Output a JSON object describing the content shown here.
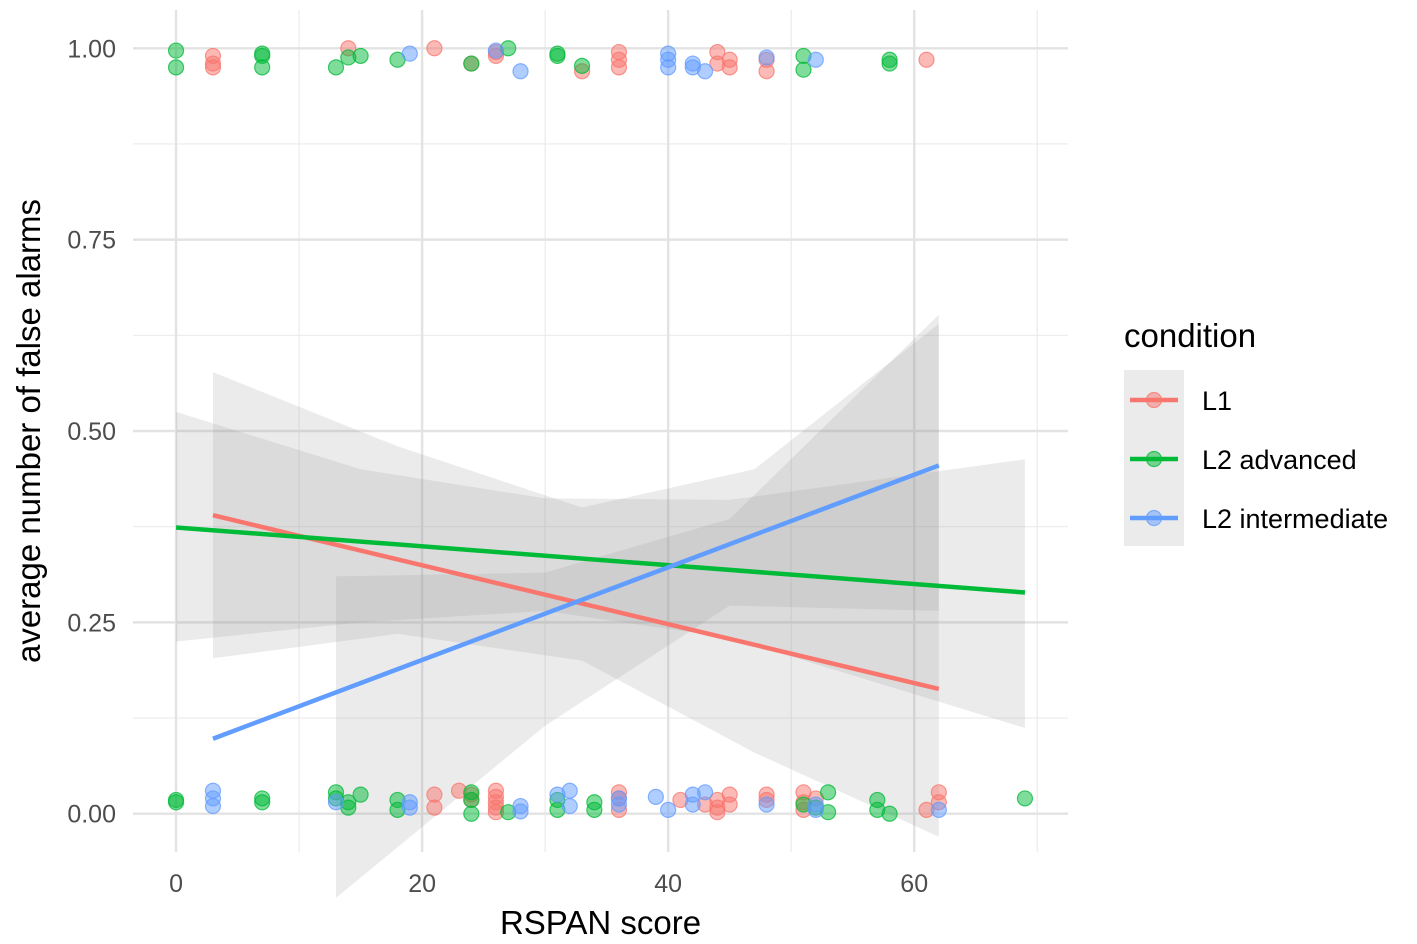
{
  "chart_data": {
    "type": "scatter",
    "xlabel": "RSPAN score",
    "ylabel": "average number of false alarms",
    "xlim": [
      -3.5,
      72.5
    ],
    "ylim": [
      -0.05,
      1.05
    ],
    "x_ticks": [
      0,
      20,
      40,
      60
    ],
    "x_tick_labels": [
      "0",
      "20",
      "40",
      "60"
    ],
    "x_minor_ticks": [
      10,
      30,
      50,
      70
    ],
    "y_ticks": [
      0,
      0.25,
      0.5,
      0.75,
      1.0
    ],
    "y_tick_labels": [
      "0.00",
      "0.25",
      "0.50",
      "0.75",
      "1.00"
    ],
    "y_minor_ticks": [
      0.125,
      0.375,
      0.625,
      0.875
    ],
    "legend": {
      "title": "condition",
      "position": "right",
      "entries": [
        "L1",
        "L2 advanced",
        "L2 intermediate"
      ]
    },
    "series": [
      {
        "name": "L1",
        "color": "#F8766D",
        "points": [
          [
            3,
            0.99
          ],
          [
            3,
            0.975
          ],
          [
            3,
            0.98
          ],
          [
            14,
            1.0
          ],
          [
            21,
            1.0
          ],
          [
            24,
            0.98
          ],
          [
            26,
            0.99
          ],
          [
            26,
            0.995
          ],
          [
            33,
            0.97
          ],
          [
            36,
            0.995
          ],
          [
            36,
            0.985
          ],
          [
            36,
            0.975
          ],
          [
            44,
            0.995
          ],
          [
            44,
            0.98
          ],
          [
            45,
            0.985
          ],
          [
            45,
            0.975
          ],
          [
            48,
            0.97
          ],
          [
            48,
            0.985
          ],
          [
            61,
            0.985
          ],
          [
            21,
            0.025
          ],
          [
            21,
            0.008
          ],
          [
            23,
            0.03
          ],
          [
            24,
            0.025
          ],
          [
            24,
            0.018
          ],
          [
            26,
            0.03
          ],
          [
            26,
            0.022
          ],
          [
            26,
            0.015
          ],
          [
            26,
            0.008
          ],
          [
            26,
            0.002
          ],
          [
            36,
            0.02
          ],
          [
            36,
            0.005
          ],
          [
            36,
            0.028
          ],
          [
            41,
            0.018
          ],
          [
            43,
            0.012
          ],
          [
            44,
            0.008
          ],
          [
            44,
            0.002
          ],
          [
            44,
            0.018
          ],
          [
            45,
            0.025
          ],
          [
            45,
            0.012
          ],
          [
            48,
            0.025
          ],
          [
            48,
            0.018
          ],
          [
            51,
            0.028
          ],
          [
            51,
            0.015
          ],
          [
            51,
            0.005
          ],
          [
            52,
            0.02
          ],
          [
            61,
            0.005
          ],
          [
            62,
            0.028
          ],
          [
            62,
            0.015
          ]
        ],
        "fit": {
          "x": [
            3,
            62
          ],
          "y": [
            0.39,
            0.163
          ]
        },
        "ci_upper": [
          [
            3,
            0.577
          ],
          [
            18,
            0.48
          ],
          [
            33,
            0.4
          ],
          [
            47,
            0.45
          ],
          [
            62,
            0.64
          ]
        ],
        "ci_lower": [
          [
            3,
            0.203
          ],
          [
            18,
            0.235
          ],
          [
            33,
            0.2
          ],
          [
            47,
            0.08
          ],
          [
            62,
            -0.03
          ]
        ]
      },
      {
        "name": "L2 advanced",
        "color": "#00BA38",
        "points": [
          [
            0,
            0.997
          ],
          [
            0,
            0.975
          ],
          [
            7,
            0.99
          ],
          [
            7,
            0.975
          ],
          [
            7,
            0.993
          ],
          [
            13,
            0.975
          ],
          [
            14,
            0.988
          ],
          [
            15,
            0.99
          ],
          [
            18,
            0.985
          ],
          [
            24,
            0.98
          ],
          [
            27,
            1.0
          ],
          [
            31,
            0.99
          ],
          [
            31,
            0.993
          ],
          [
            33,
            0.977
          ],
          [
            51,
            0.99
          ],
          [
            51,
            0.972
          ],
          [
            58,
            0.985
          ],
          [
            58,
            0.98
          ],
          [
            0,
            0.018
          ],
          [
            0,
            0.015
          ],
          [
            7,
            0.02
          ],
          [
            7,
            0.015
          ],
          [
            13,
            0.028
          ],
          [
            13,
            0.02
          ],
          [
            14,
            0.015
          ],
          [
            14,
            0.008
          ],
          [
            15,
            0.025
          ],
          [
            18,
            0.018
          ],
          [
            18,
            0.005
          ],
          [
            24,
            0.028
          ],
          [
            24,
            0.018
          ],
          [
            24,
            0.0
          ],
          [
            27,
            0.002
          ],
          [
            31,
            0.018
          ],
          [
            31,
            0.005
          ],
          [
            34,
            0.015
          ],
          [
            34,
            0.005
          ],
          [
            51,
            0.012
          ],
          [
            52,
            0.008
          ],
          [
            53,
            0.002
          ],
          [
            53,
            0.028
          ],
          [
            57,
            0.018
          ],
          [
            57,
            0.005
          ],
          [
            58,
            0.0
          ],
          [
            69,
            0.02
          ]
        ],
        "fit": {
          "x": [
            0,
            69
          ],
          "y": [
            0.374,
            0.289
          ]
        },
        "ci_upper": [
          [
            0,
            0.525
          ],
          [
            15,
            0.45
          ],
          [
            30,
            0.412
          ],
          [
            45,
            0.41
          ],
          [
            69,
            0.463
          ]
        ],
        "ci_lower": [
          [
            0,
            0.225
          ],
          [
            15,
            0.25
          ],
          [
            30,
            0.265
          ],
          [
            45,
            0.23
          ],
          [
            69,
            0.112
          ]
        ]
      },
      {
        "name": "L2 intermediate",
        "color": "#619CFF",
        "points": [
          [
            19,
            0.993
          ],
          [
            26,
            0.997
          ],
          [
            28,
            0.97
          ],
          [
            40,
            0.993
          ],
          [
            40,
            0.985
          ],
          [
            40,
            0.975
          ],
          [
            42,
            0.98
          ],
          [
            42,
            0.975
          ],
          [
            43,
            0.97
          ],
          [
            48,
            0.988
          ],
          [
            52,
            0.985
          ],
          [
            3,
            0.03
          ],
          [
            3,
            0.02
          ],
          [
            3,
            0.01
          ],
          [
            13,
            0.015
          ],
          [
            19,
            0.015
          ],
          [
            19,
            0.008
          ],
          [
            28,
            0.01
          ],
          [
            28,
            0.003
          ],
          [
            31,
            0.025
          ],
          [
            32,
            0.03
          ],
          [
            32,
            0.01
          ],
          [
            36,
            0.02
          ],
          [
            36,
            0.012
          ],
          [
            39,
            0.022
          ],
          [
            40,
            0.005
          ],
          [
            42,
            0.025
          ],
          [
            42,
            0.012
          ],
          [
            43,
            0.028
          ],
          [
            48,
            0.012
          ],
          [
            52,
            0.012
          ],
          [
            52,
            0.005
          ],
          [
            62,
            0.005
          ]
        ],
        "fit": {
          "x": [
            3,
            62
          ],
          "y": [
            0.098,
            0.455
          ]
        },
        "ci_upper": [
          [
            13,
            0.31
          ],
          [
            30,
            0.315
          ],
          [
            45,
            0.385
          ],
          [
            62,
            0.652
          ]
        ],
        "ci_lower": [
          [
            13,
            -0.11
          ],
          [
            30,
            0.115
          ],
          [
            45,
            0.272
          ],
          [
            62,
            0.265
          ]
        ]
      }
    ]
  }
}
